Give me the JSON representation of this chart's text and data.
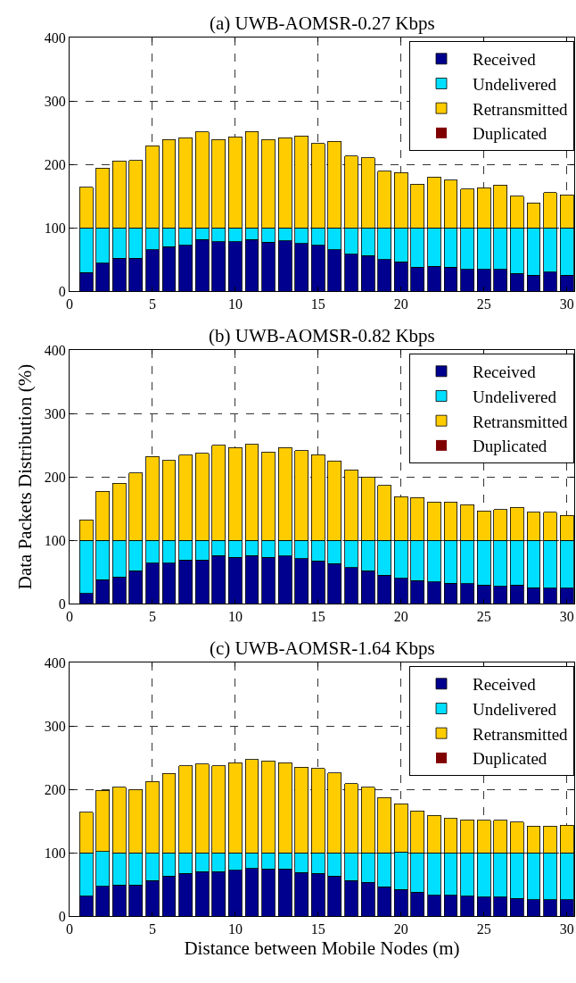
{
  "chart_data": [
    {
      "type": "bar",
      "title": "(a) UWB-AOMSR-0.27 Kbps",
      "stacked": true,
      "x": [
        1,
        2,
        3,
        4,
        5,
        6,
        7,
        8,
        9,
        10,
        11,
        12,
        13,
        14,
        15,
        16,
        17,
        18,
        19,
        20,
        21,
        22,
        23,
        24,
        25,
        26,
        27,
        28,
        29,
        30
      ],
      "series": [
        {
          "name": "Received",
          "color": "#00008f",
          "values": [
            29,
            44,
            52,
            52,
            65,
            70,
            72,
            81,
            78,
            78,
            81,
            77,
            79,
            75,
            72,
            65,
            58,
            56,
            50,
            46,
            38,
            39,
            38,
            34,
            34,
            34,
            28,
            25,
            30,
            25
          ]
        },
        {
          "name": "Undelivered",
          "color": "#00dfff",
          "values": [
            71,
            56,
            48,
            48,
            35,
            30,
            28,
            19,
            22,
            22,
            19,
            23,
            21,
            25,
            28,
            35,
            42,
            44,
            50,
            54,
            62,
            61,
            62,
            66,
            66,
            66,
            72,
            75,
            70,
            75
          ]
        },
        {
          "name": "Retransmitted",
          "color": "#ffcc00",
          "values": [
            64,
            94,
            105,
            106,
            129,
            139,
            142,
            151,
            139,
            143,
            152,
            139,
            142,
            145,
            133,
            136,
            113,
            110,
            89,
            87,
            69,
            80,
            75,
            61,
            63,
            67,
            50,
            39,
            55,
            52
          ]
        },
        {
          "name": "Duplicated",
          "color": "#800000",
          "values": [
            0,
            0,
            0,
            0,
            0,
            0,
            0,
            0,
            0,
            0,
            0,
            0,
            0,
            0,
            0,
            0,
            0,
            0,
            0,
            0,
            0,
            0,
            0,
            0,
            0,
            0,
            0,
            0,
            0,
            0
          ]
        }
      ],
      "xlim": [
        0,
        30.45
      ],
      "xticks": [
        0,
        5,
        10,
        15,
        20,
        25,
        30
      ],
      "ylim": [
        0,
        400
      ],
      "yticks": [
        0,
        100,
        200,
        300,
        400
      ],
      "grid": true,
      "legend": "top right"
    },
    {
      "type": "bar",
      "title": "(b) UWB-AOMSR-0.82 Kbps",
      "ylabel": "Data Packets Distribution (%)",
      "stacked": true,
      "x": [
        1,
        2,
        3,
        4,
        5,
        6,
        7,
        8,
        9,
        10,
        11,
        12,
        13,
        14,
        15,
        16,
        17,
        18,
        19,
        20,
        21,
        22,
        23,
        24,
        25,
        26,
        27,
        28,
        29,
        30
      ],
      "series": [
        {
          "name": "Received",
          "color": "#00008f",
          "values": [
            16,
            38,
            42,
            52,
            64,
            64,
            69,
            69,
            76,
            73,
            76,
            73,
            75,
            71,
            67,
            63,
            57,
            52,
            45,
            40,
            36,
            34,
            32,
            31,
            29,
            27,
            29,
            25,
            24,
            24
          ]
        },
        {
          "name": "Undelivered",
          "color": "#00dfff",
          "values": [
            84,
            62,
            58,
            48,
            36,
            36,
            31,
            31,
            24,
            27,
            24,
            27,
            25,
            29,
            33,
            37,
            43,
            48,
            55,
            60,
            64,
            66,
            68,
            69,
            71,
            73,
            71,
            75,
            76,
            76
          ]
        },
        {
          "name": "Retransmitted",
          "color": "#ffcc00",
          "values": [
            32,
            77,
            90,
            106,
            132,
            126,
            134,
            137,
            150,
            146,
            151,
            139,
            146,
            141,
            135,
            125,
            111,
            100,
            86,
            69,
            67,
            60,
            60,
            56,
            46,
            48,
            52,
            44,
            44,
            39
          ]
        },
        {
          "name": "Duplicated",
          "color": "#800000",
          "values": [
            0,
            0,
            0,
            0,
            0,
            0,
            0,
            0,
            0,
            0,
            0,
            0,
            0,
            0,
            0,
            0,
            0,
            0,
            0,
            0,
            0,
            0,
            0,
            0,
            0,
            0,
            0,
            0,
            0,
            0
          ]
        }
      ],
      "xlim": [
        0,
        30.45
      ],
      "xticks": [
        0,
        5,
        10,
        15,
        20,
        25,
        30
      ],
      "ylim": [
        0,
        400
      ],
      "yticks": [
        0,
        100,
        200,
        300,
        400
      ],
      "grid": true,
      "legend": "top right"
    },
    {
      "type": "bar",
      "title": "(c) UWB-AOMSR-1.64 Kbps",
      "xlabel": "Distance between Mobile Nodes (m)",
      "stacked": true,
      "x": [
        1,
        2,
        3,
        4,
        5,
        6,
        7,
        8,
        9,
        10,
        11,
        12,
        13,
        14,
        15,
        16,
        17,
        18,
        19,
        20,
        21,
        22,
        23,
        24,
        25,
        26,
        27,
        28,
        29,
        30
      ],
      "series": [
        {
          "name": "Received",
          "color": "#00008f",
          "values": [
            31,
            47,
            49,
            49,
            56,
            63,
            67,
            70,
            70,
            72,
            75,
            74,
            74,
            69,
            67,
            63,
            56,
            53,
            46,
            42,
            38,
            33,
            33,
            31,
            30,
            30,
            28,
            26,
            26,
            26
          ]
        },
        {
          "name": "Undelivered",
          "color": "#00dfff",
          "values": [
            69,
            55,
            51,
            51,
            44,
            37,
            33,
            30,
            30,
            28,
            25,
            26,
            26,
            31,
            33,
            37,
            44,
            47,
            54,
            59,
            62,
            67,
            67,
            69,
            70,
            70,
            72,
            74,
            74,
            74
          ]
        },
        {
          "name": "Retransmitted",
          "color": "#ffcc00",
          "values": [
            64,
            96,
            103,
            100,
            112,
            125,
            137,
            140,
            137,
            142,
            147,
            145,
            142,
            135,
            133,
            126,
            109,
            103,
            87,
            76,
            66,
            59,
            54,
            52,
            51,
            51,
            48,
            42,
            42,
            43
          ]
        },
        {
          "name": "Duplicated",
          "color": "#800000",
          "values": [
            0,
            0,
            0,
            0,
            0,
            0,
            0,
            0,
            0,
            0,
            0,
            0,
            0,
            0,
            0,
            0,
            0,
            0,
            0,
            0,
            0,
            0,
            0,
            0,
            0,
            0,
            0,
            0,
            0,
            0
          ]
        }
      ],
      "xlim": [
        0,
        30.45
      ],
      "xticks": [
        0,
        5,
        10,
        15,
        20,
        25,
        30
      ],
      "ylim": [
        0,
        400
      ],
      "yticks": [
        0,
        100,
        200,
        300,
        400
      ],
      "grid": true,
      "legend": "top right"
    }
  ]
}
